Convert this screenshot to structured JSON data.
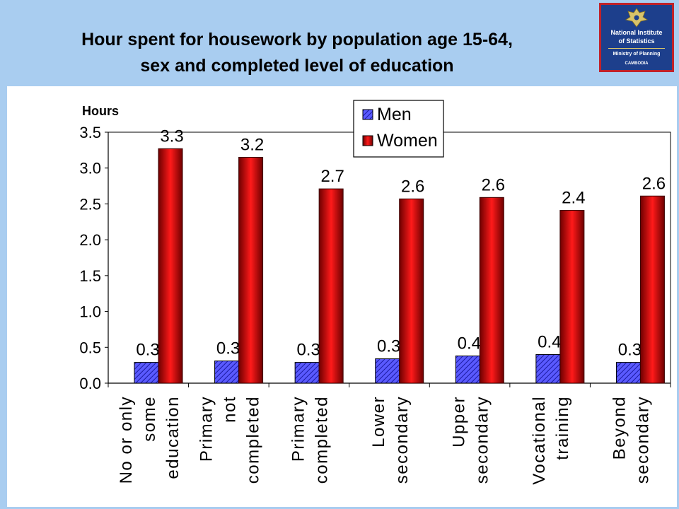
{
  "chart_data": {
    "type": "bar",
    "title_lines": [
      "Hour spent for housework by population age 15-64,",
      "sex and completed level of education"
    ],
    "ylabel": "Hours",
    "ylim": [
      0,
      3.5
    ],
    "ytick_step": 0.5,
    "yticks": [
      "0.0",
      "0.5",
      "1.0",
      "1.5",
      "2.0",
      "2.5",
      "3.0",
      "3.5"
    ],
    "categories": [
      [
        "No or only",
        "some",
        "education"
      ],
      [
        "Primary",
        "not",
        "completed"
      ],
      [
        "Primary",
        "completed"
      ],
      [
        "Lower",
        "secondary"
      ],
      [
        "Upper",
        "secondary"
      ],
      [
        "Vocational",
        "training"
      ],
      [
        "Beyond",
        "secondary"
      ]
    ],
    "series": [
      {
        "name": "Men",
        "values": [
          0.29,
          0.31,
          0.29,
          0.34,
          0.38,
          0.4,
          0.29
        ],
        "labels": [
          "0.3",
          "0.3",
          "0.3",
          "0.3",
          "0.4",
          "0.4",
          "0.3"
        ],
        "color": "#3a3ae0"
      },
      {
        "name": "Women",
        "values": [
          3.27,
          3.15,
          2.71,
          2.57,
          2.59,
          2.41,
          2.61
        ],
        "labels": [
          "3.3",
          "3.2",
          "2.7",
          "2.6",
          "2.6",
          "2.4",
          "2.6"
        ],
        "color": "#e00000"
      }
    ],
    "legend": "top-center",
    "grid": false
  },
  "logo": {
    "line1": "National Institute",
    "line2": "of Statistics",
    "line3": "Ministry of Planning",
    "line4": "CAMBODIA"
  }
}
